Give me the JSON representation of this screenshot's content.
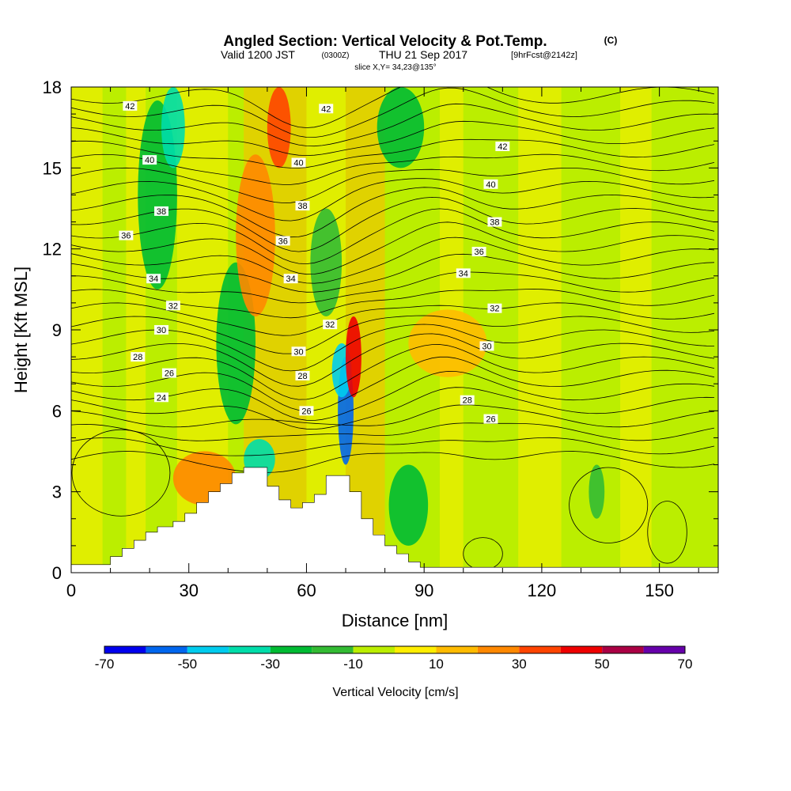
{
  "header": {
    "title": "Angled Section: Vertical Velocity & Pot.Temp.",
    "title_units": "(C)",
    "valid_prefix": "Valid 1200 JST",
    "valid_utc": "(0300Z)",
    "valid_date": "THU 21 Sep 2017",
    "forecast": "[9hrFcst@2142z]",
    "slice": "slice X,Y= 34,23@135°"
  },
  "chart_data": {
    "type": "heatmap",
    "xlabel": "Distance [nm]",
    "ylabel": "Height [Kft MSL]",
    "xlim": [
      0,
      165
    ],
    "ylim": [
      0,
      18
    ],
    "x_ticks": [
      "0",
      "30",
      "60",
      "90",
      "120",
      "150"
    ],
    "y_ticks": [
      "0",
      "3",
      "6",
      "9",
      "12",
      "15",
      "18"
    ],
    "x_tick_values": [
      0,
      30,
      60,
      90,
      120,
      150
    ],
    "y_tick_values": [
      0,
      3,
      6,
      9,
      12,
      15,
      18
    ],
    "colorbar": {
      "title": "Vertical Velocity [cm/s]",
      "labels": [
        "-70",
        "-50",
        "-30",
        "-10",
        "10",
        "30",
        "50",
        "70"
      ],
      "label_values": [
        -70,
        -50,
        -30,
        -10,
        10,
        30,
        50,
        70
      ],
      "bins": [
        -70,
        -60,
        -50,
        -40,
        -30,
        -20,
        -10,
        0,
        10,
        20,
        30,
        40,
        50,
        60,
        70
      ],
      "colors": [
        "#0000ee",
        "#0066ee",
        "#00ccee",
        "#00ddaa",
        "#00bb33",
        "#33bb33",
        "#bbee00",
        "#ffee00",
        "#ffbb00",
        "#ff8800",
        "#ff4400",
        "#ee0000",
        "#aa0044",
        "#6600aa"
      ]
    },
    "terrain": {
      "distance_nm": [
        0,
        10,
        13,
        16,
        19,
        22,
        26,
        29,
        32,
        35,
        38,
        41,
        44,
        50,
        53,
        56,
        59,
        62,
        65,
        71,
        74,
        77,
        80,
        83,
        86,
        89,
        165
      ],
      "height_kft": [
        0.3,
        0.6,
        0.9,
        1.2,
        1.5,
        1.7,
        1.9,
        2.2,
        2.6,
        3.0,
        3.3,
        3.7,
        3.9,
        3.2,
        2.7,
        2.4,
        2.6,
        2.9,
        3.6,
        3.0,
        2.0,
        1.4,
        1.0,
        0.7,
        0.4,
        0.2,
        0.3
      ]
    },
    "velocity_features": [
      {
        "x": 48,
        "y": 4.2,
        "value": -35,
        "width_nm": 4,
        "height_kft": 1.5
      },
      {
        "x": 42,
        "y": 8.5,
        "value": -25,
        "width_nm": 5,
        "height_kft": 6
      },
      {
        "x": 22,
        "y": 14,
        "value": -25,
        "width_nm": 5,
        "height_kft": 7
      },
      {
        "x": 26,
        "y": 16.5,
        "value": -40,
        "width_nm": 3,
        "height_kft": 3
      },
      {
        "x": 70,
        "y": 6.0,
        "value": -60,
        "width_nm": 2,
        "height_kft": 4
      },
      {
        "x": 69,
        "y": 7.5,
        "value": -45,
        "width_nm": 2.5,
        "height_kft": 2
      },
      {
        "x": 72,
        "y": 8.0,
        "value": 45,
        "width_nm": 2,
        "height_kft": 3
      },
      {
        "x": 65,
        "y": 11.5,
        "value": -20,
        "width_nm": 4,
        "height_kft": 4
      },
      {
        "x": 47,
        "y": 12.5,
        "value": 25,
        "width_nm": 5,
        "height_kft": 6
      },
      {
        "x": 53,
        "y": 16.5,
        "value": 35,
        "width_nm": 3,
        "height_kft": 3
      },
      {
        "x": 84,
        "y": 16.5,
        "value": -30,
        "width_nm": 6,
        "height_kft": 3
      },
      {
        "x": 86,
        "y": 2.5,
        "value": -25,
        "width_nm": 5,
        "height_kft": 3
      },
      {
        "x": 96,
        "y": 8.5,
        "value": 15,
        "width_nm": 10,
        "height_kft": 2.5
      },
      {
        "x": 134,
        "y": 3.0,
        "value": -20,
        "width_nm": 2,
        "height_kft": 2
      },
      {
        "x": 34,
        "y": 3.5,
        "value": 20,
        "width_nm": 8,
        "height_kft": 2
      }
    ],
    "potential_temperature_levels": [
      "24",
      "26",
      "28",
      "30",
      "32",
      "34",
      "36",
      "38",
      "40",
      "42"
    ],
    "contour_labels": [
      {
        "text": "42",
        "x": 15,
        "y": 17.3
      },
      {
        "text": "42",
        "x": 65,
        "y": 17.2
      },
      {
        "text": "42",
        "x": 110,
        "y": 15.8
      },
      {
        "text": "40",
        "x": 20,
        "y": 15.3
      },
      {
        "text": "40",
        "x": 58,
        "y": 15.2
      },
      {
        "text": "40",
        "x": 107,
        "y": 14.4
      },
      {
        "text": "38",
        "x": 23,
        "y": 13.4
      },
      {
        "text": "38",
        "x": 59,
        "y": 13.6
      },
      {
        "text": "38",
        "x": 108,
        "y": 13.0
      },
      {
        "text": "36",
        "x": 14,
        "y": 12.5
      },
      {
        "text": "36",
        "x": 54,
        "y": 12.3
      },
      {
        "text": "36",
        "x": 104,
        "y": 11.9
      },
      {
        "text": "34",
        "x": 21,
        "y": 10.9
      },
      {
        "text": "34",
        "x": 56,
        "y": 10.9
      },
      {
        "text": "34",
        "x": 100,
        "y": 11.1
      },
      {
        "text": "32",
        "x": 26,
        "y": 9.9
      },
      {
        "text": "32",
        "x": 66,
        "y": 9.2
      },
      {
        "text": "32",
        "x": 108,
        "y": 9.8
      },
      {
        "text": "30",
        "x": 23,
        "y": 9.0
      },
      {
        "text": "30",
        "x": 58,
        "y": 8.2
      },
      {
        "text": "30",
        "x": 106,
        "y": 8.4
      },
      {
        "text": "28",
        "x": 17,
        "y": 8.0
      },
      {
        "text": "28",
        "x": 59,
        "y": 7.3
      },
      {
        "text": "28",
        "x": 101,
        "y": 6.4
      },
      {
        "text": "26",
        "x": 25,
        "y": 7.4
      },
      {
        "text": "26",
        "x": 60,
        "y": 6.0
      },
      {
        "text": "26",
        "x": 107,
        "y": 5.7
      },
      {
        "text": "24",
        "x": 23,
        "y": 6.5
      }
    ]
  }
}
